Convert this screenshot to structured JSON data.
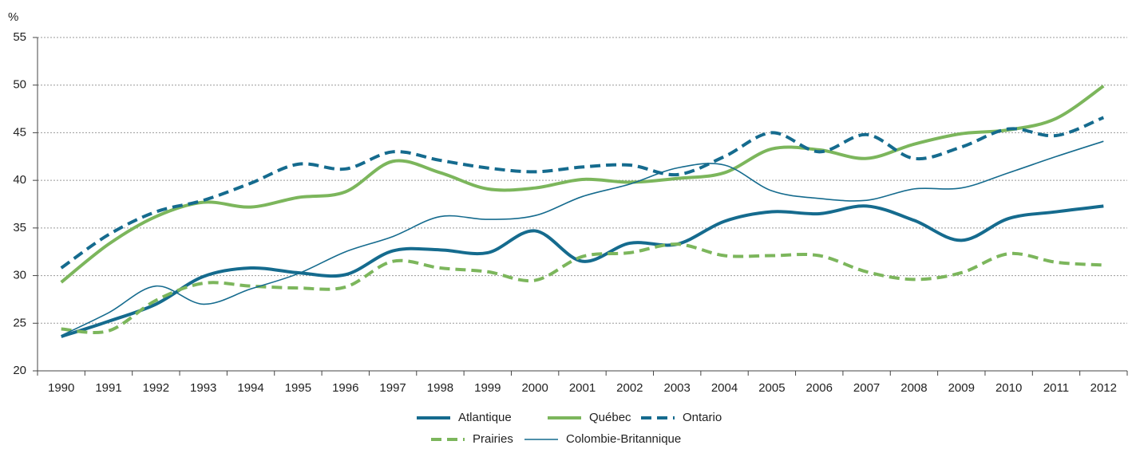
{
  "chart_data": {
    "type": "line",
    "y_label": "%",
    "categories": [
      "1990",
      "1991",
      "1992",
      "1993",
      "1994",
      "1995",
      "1996",
      "1997",
      "1998",
      "1999",
      "2000",
      "2001",
      "2002",
      "2003",
      "2004",
      "2005",
      "2006",
      "2007",
      "2008",
      "2009",
      "2010",
      "2011",
      "2012"
    ],
    "series": [
      {
        "name": "Atlantique",
        "color": "#156b8e",
        "line_style": "solid",
        "line_weight": "thick",
        "values": [
          23.6,
          25.2,
          27.0,
          29.9,
          30.8,
          30.3,
          30.1,
          32.6,
          32.7,
          32.4,
          34.7,
          31.5,
          33.4,
          33.3,
          35.7,
          36.7,
          36.5,
          37.3,
          35.8,
          33.7,
          36.0,
          36.7,
          37.3
        ]
      },
      {
        "name": "Québec",
        "color": "#7cb65c",
        "line_style": "solid",
        "line_weight": "thick",
        "values": [
          29.3,
          33.3,
          36.2,
          37.7,
          37.2,
          38.2,
          38.8,
          42.0,
          40.8,
          39.1,
          39.2,
          40.1,
          39.8,
          40.2,
          40.8,
          43.3,
          43.2,
          42.3,
          43.8,
          44.9,
          45.3,
          46.5,
          49.9
        ]
      },
      {
        "name": "Ontario",
        "color": "#156b8e",
        "line_style": "dashed",
        "line_weight": "thick",
        "values": [
          30.8,
          34.3,
          36.7,
          37.9,
          39.7,
          41.7,
          41.2,
          43.0,
          42.1,
          41.3,
          40.9,
          41.4,
          41.6,
          40.6,
          42.5,
          45.0,
          43.0,
          44.8,
          42.3,
          43.5,
          45.4,
          44.7,
          46.6
        ]
      },
      {
        "name": "Prairies",
        "color": "#7cb65c",
        "line_style": "dashed",
        "line_weight": "thick",
        "values": [
          24.4,
          24.2,
          27.4,
          29.2,
          28.9,
          28.7,
          28.8,
          31.5,
          30.8,
          30.4,
          29.5,
          32.0,
          32.4,
          33.3,
          32.1,
          32.1,
          32.1,
          30.4,
          29.6,
          30.3,
          32.3,
          31.4,
          31.1
        ]
      },
      {
        "name": "Colombie-Britannique",
        "color": "#156b8e",
        "line_style": "solid",
        "line_weight": "thin",
        "values": [
          23.7,
          26.1,
          28.9,
          27.0,
          28.6,
          30.2,
          32.5,
          34.1,
          36.2,
          35.9,
          36.3,
          38.3,
          39.6,
          41.3,
          41.6,
          38.9,
          38.1,
          37.9,
          39.1,
          39.2,
          40.8,
          42.5,
          44.1
        ]
      }
    ],
    "ylim": [
      20,
      55
    ],
    "yticks": [
      20,
      25,
      30,
      35,
      40,
      45,
      50,
      55
    ],
    "grid": true
  }
}
